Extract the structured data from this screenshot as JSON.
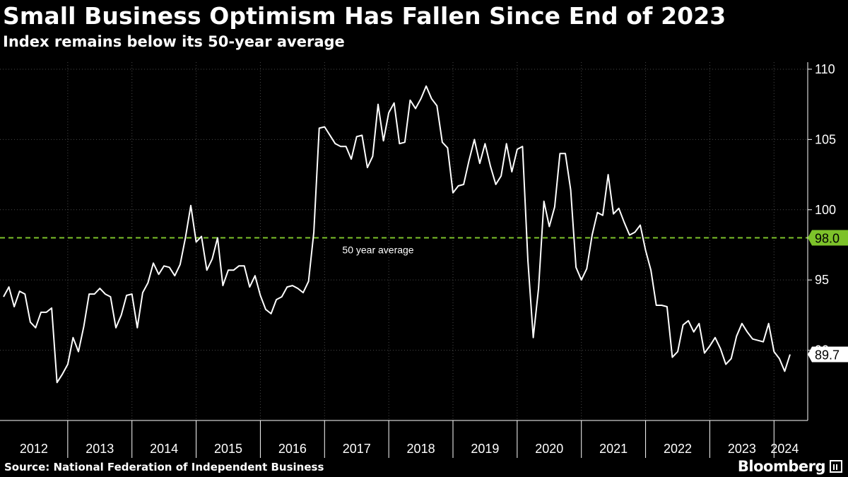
{
  "header": {
    "title": "Small Business Optimism Has Fallen Since End of 2023",
    "subtitle": "Index remains below its 50-year average"
  },
  "footer": {
    "source": "Source: National Federation of Independent Business",
    "brand": "Bloomberg"
  },
  "colors": {
    "background": "#000000",
    "line": "#ffffff",
    "average_line": "#7dc22a",
    "average_label_bg": "#7dc22a",
    "grid": "#4a4a4a"
  },
  "chart_data": {
    "type": "line",
    "title": "Small Business Optimism Has Fallen Since End of 2023",
    "subtitle": "Index remains below its 50-year average",
    "x_axis": {
      "start": "2012-01",
      "end": "2024-04",
      "tick_labels": [
        "2012",
        "2013",
        "2014",
        "2015",
        "2016",
        "2017",
        "2018",
        "2019",
        "2020",
        "2021",
        "2022",
        "2023",
        "2024"
      ]
    },
    "y_axis": {
      "position": "right",
      "min": 85,
      "max": 110.5,
      "ticks": [
        90,
        95,
        100,
        105,
        110
      ],
      "tick_labels": [
        "90",
        "95",
        "100",
        "105",
        "110"
      ]
    },
    "grid": "dotted",
    "series": [
      {
        "points": [
          [
            "2012-01",
            93.8
          ],
          [
            "2012-02",
            94.5
          ],
          [
            "2012-03",
            93.1
          ],
          [
            "2012-04",
            94.2
          ],
          [
            "2012-05",
            94.0
          ],
          [
            "2012-06",
            92.0
          ],
          [
            "2012-07",
            91.6
          ],
          [
            "2012-08",
            92.7
          ],
          [
            "2012-09",
            92.7
          ],
          [
            "2012-10",
            93.0
          ],
          [
            "2012-11",
            87.7
          ],
          [
            "2012-12",
            88.3
          ],
          [
            "2013-01",
            89.0
          ],
          [
            "2013-02",
            90.9
          ],
          [
            "2013-03",
            89.9
          ],
          [
            "2013-04",
            91.7
          ],
          [
            "2013-05",
            94.0
          ],
          [
            "2013-06",
            94.0
          ],
          [
            "2013-07",
            94.4
          ],
          [
            "2013-08",
            94.0
          ],
          [
            "2013-09",
            93.8
          ],
          [
            "2013-10",
            91.6
          ],
          [
            "2013-11",
            92.5
          ],
          [
            "2013-12",
            93.9
          ],
          [
            "2014-01",
            94.0
          ],
          [
            "2014-02",
            91.6
          ],
          [
            "2014-03",
            94.1
          ],
          [
            "2014-04",
            94.8
          ],
          [
            "2014-05",
            96.2
          ],
          [
            "2014-06",
            95.4
          ],
          [
            "2014-07",
            96.0
          ],
          [
            "2014-08",
            95.9
          ],
          [
            "2014-09",
            95.3
          ],
          [
            "2014-10",
            96.1
          ],
          [
            "2014-11",
            98.0
          ],
          [
            "2014-12",
            100.3
          ],
          [
            "2015-01",
            97.7
          ],
          [
            "2015-02",
            98.1
          ],
          [
            "2015-03",
            95.7
          ],
          [
            "2015-04",
            96.5
          ],
          [
            "2015-05",
            98.0
          ],
          [
            "2015-06",
            94.6
          ],
          [
            "2015-07",
            95.7
          ],
          [
            "2015-08",
            95.7
          ],
          [
            "2015-09",
            96.0
          ],
          [
            "2015-10",
            96.0
          ],
          [
            "2015-11",
            94.5
          ],
          [
            "2015-12",
            95.3
          ],
          [
            "2016-01",
            93.9
          ],
          [
            "2016-02",
            92.9
          ],
          [
            "2016-03",
            92.6
          ],
          [
            "2016-04",
            93.6
          ],
          [
            "2016-05",
            93.8
          ],
          [
            "2016-06",
            94.5
          ],
          [
            "2016-07",
            94.6
          ],
          [
            "2016-08",
            94.4
          ],
          [
            "2016-09",
            94.1
          ],
          [
            "2016-10",
            94.9
          ],
          [
            "2016-11",
            98.4
          ],
          [
            "2016-12",
            105.8
          ],
          [
            "2017-01",
            105.9
          ],
          [
            "2017-02",
            105.3
          ],
          [
            "2017-03",
            104.7
          ],
          [
            "2017-04",
            104.5
          ],
          [
            "2017-05",
            104.5
          ],
          [
            "2017-06",
            103.6
          ],
          [
            "2017-07",
            105.2
          ],
          [
            "2017-08",
            105.3
          ],
          [
            "2017-09",
            103.0
          ],
          [
            "2017-10",
            103.8
          ],
          [
            "2017-11",
            107.5
          ],
          [
            "2017-12",
            104.9
          ],
          [
            "2018-01",
            106.9
          ],
          [
            "2018-02",
            107.6
          ],
          [
            "2018-03",
            104.7
          ],
          [
            "2018-04",
            104.8
          ],
          [
            "2018-05",
            107.8
          ],
          [
            "2018-06",
            107.2
          ],
          [
            "2018-07",
            107.9
          ],
          [
            "2018-08",
            108.8
          ],
          [
            "2018-09",
            107.9
          ],
          [
            "2018-10",
            107.4
          ],
          [
            "2018-11",
            104.8
          ],
          [
            "2018-12",
            104.4
          ],
          [
            "2019-01",
            101.2
          ],
          [
            "2019-02",
            101.7
          ],
          [
            "2019-03",
            101.8
          ],
          [
            "2019-04",
            103.5
          ],
          [
            "2019-05",
            105.0
          ],
          [
            "2019-06",
            103.3
          ],
          [
            "2019-07",
            104.7
          ],
          [
            "2019-08",
            103.1
          ],
          [
            "2019-09",
            101.8
          ],
          [
            "2019-10",
            102.4
          ],
          [
            "2019-11",
            104.7
          ],
          [
            "2019-12",
            102.7
          ],
          [
            "2020-01",
            104.3
          ],
          [
            "2020-02",
            104.5
          ],
          [
            "2020-03",
            96.4
          ],
          [
            "2020-04",
            90.9
          ],
          [
            "2020-05",
            94.4
          ],
          [
            "2020-06",
            100.6
          ],
          [
            "2020-07",
            98.8
          ],
          [
            "2020-08",
            100.2
          ],
          [
            "2020-09",
            104.0
          ],
          [
            "2020-10",
            104.0
          ],
          [
            "2020-11",
            101.4
          ],
          [
            "2020-12",
            95.9
          ],
          [
            "2021-01",
            95.0
          ],
          [
            "2021-02",
            95.8
          ],
          [
            "2021-03",
            98.2
          ],
          [
            "2021-04",
            99.8
          ],
          [
            "2021-05",
            99.6
          ],
          [
            "2021-06",
            102.5
          ],
          [
            "2021-07",
            99.7
          ],
          [
            "2021-08",
            100.1
          ],
          [
            "2021-09",
            99.1
          ],
          [
            "2021-10",
            98.2
          ],
          [
            "2021-11",
            98.4
          ],
          [
            "2021-12",
            98.9
          ],
          [
            "2022-01",
            97.1
          ],
          [
            "2022-02",
            95.7
          ],
          [
            "2022-03",
            93.2
          ],
          [
            "2022-04",
            93.2
          ],
          [
            "2022-05",
            93.1
          ],
          [
            "2022-06",
            89.5
          ],
          [
            "2022-07",
            89.9
          ],
          [
            "2022-08",
            91.8
          ],
          [
            "2022-09",
            92.1
          ],
          [
            "2022-10",
            91.3
          ],
          [
            "2022-11",
            91.9
          ],
          [
            "2022-12",
            89.8
          ],
          [
            "2023-01",
            90.3
          ],
          [
            "2023-02",
            90.9
          ],
          [
            "2023-03",
            90.1
          ],
          [
            "2023-04",
            89.0
          ],
          [
            "2023-05",
            89.4
          ],
          [
            "2023-06",
            91.0
          ],
          [
            "2023-07",
            91.9
          ],
          [
            "2023-08",
            91.3
          ],
          [
            "2023-09",
            90.8
          ],
          [
            "2023-10",
            90.7
          ],
          [
            "2023-11",
            90.6
          ],
          [
            "2023-12",
            91.9
          ],
          [
            "2024-01",
            89.9
          ],
          [
            "2024-02",
            89.4
          ],
          [
            "2024-03",
            88.5
          ],
          [
            "2024-04",
            89.7
          ]
        ]
      }
    ],
    "reference_line": {
      "label": "50 year average",
      "value": 98.0,
      "value_label": "98.0",
      "style": "dashed"
    },
    "latest_value_label": "89.7"
  }
}
